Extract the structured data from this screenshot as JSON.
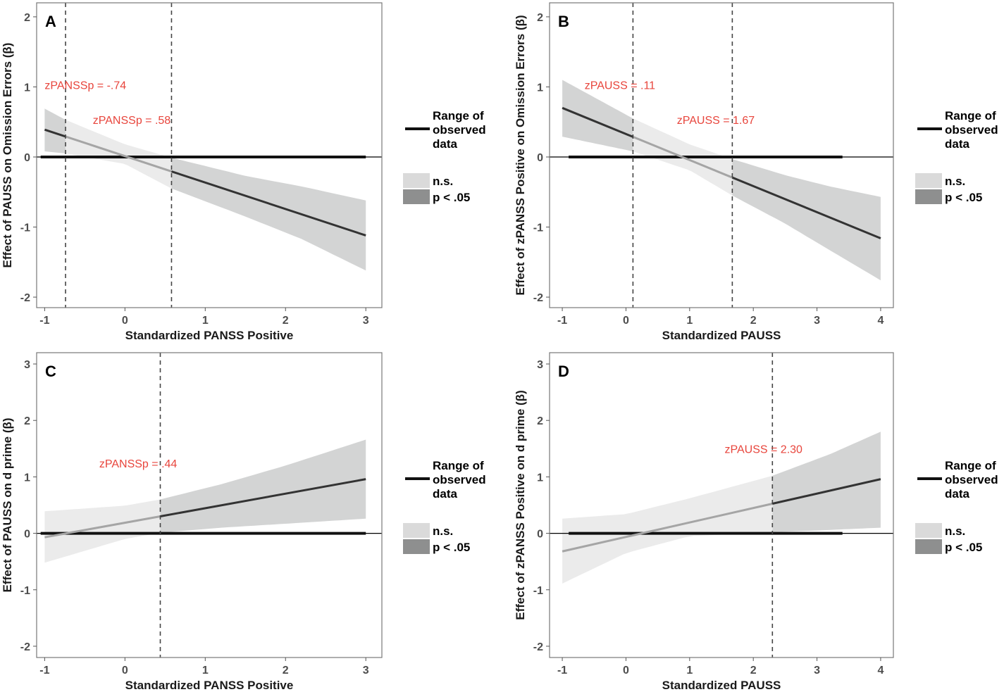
{
  "figure": {
    "colors": {
      "band_ns": "#ebebeb",
      "band_sig": "#d3d4d4",
      "line_ns": "#a5a5a5",
      "line_sig": "#333333",
      "range": "#111111",
      "annotation": "#e8453c",
      "vline": "#444444",
      "legend_ns": "#dadada",
      "legend_sig": "#8e8f8f"
    }
  },
  "legend": {
    "range_label": [
      "Range of",
      "observed",
      "data"
    ],
    "ns_label": "n.s.",
    "sig_label": "p < .05"
  },
  "chart_data": [
    {
      "panel": "A",
      "type": "line",
      "xlabel": "Standardized PANSS Positive",
      "ylabel": "Effect of PAUSS on Omission Errors (β)",
      "xlim": [
        -1.1,
        3.2
      ],
      "ylim": [
        -2.15,
        2.2
      ],
      "xticks": [
        -1,
        0,
        1,
        2,
        3
      ],
      "yticks": [
        -2,
        -1,
        0,
        1,
        2
      ],
      "x_range": [
        -1,
        3
      ],
      "line": [
        0.39,
        -1.12
      ],
      "band_lower": [
        [
          -1,
          0.08
        ],
        [
          -0.74,
          0.05
        ],
        [
          0,
          -0.1
        ],
        [
          0.58,
          -0.45
        ],
        [
          1.5,
          -0.85
        ],
        [
          2.2,
          -1.17
        ],
        [
          3,
          -1.62
        ]
      ],
      "band_upper": [
        [
          -1,
          0.69
        ],
        [
          -0.74,
          0.53
        ],
        [
          0,
          0.18
        ],
        [
          0.58,
          -0.01
        ],
        [
          1.5,
          -0.27
        ],
        [
          2.2,
          -0.42
        ],
        [
          3,
          -0.62
        ]
      ],
      "significance": [
        {
          "from": -1,
          "to": -0.74,
          "sig": true
        },
        {
          "from": -0.74,
          "to": 0.58,
          "sig": false
        },
        {
          "from": 0.58,
          "to": 3,
          "sig": true
        }
      ],
      "vlines": [
        -0.74,
        0.58
      ],
      "annotations": [
        {
          "text": "zPANSSp = -.74",
          "x": -1.0,
          "y": 0.97
        },
        {
          "text": "zPANSSp = .58",
          "x": -0.4,
          "y": 0.47
        }
      ],
      "observed_range": [
        -1.05,
        3.0
      ]
    },
    {
      "panel": "B",
      "type": "line",
      "xlabel": "Standardized PAUSS",
      "ylabel": "Effect of zPANSS Positive on Omission Errors (β)",
      "xlim": [
        -1.2,
        4.2
      ],
      "ylim": [
        -2.15,
        2.2
      ],
      "xticks": [
        -1,
        0,
        1,
        2,
        3,
        4
      ],
      "yticks": [
        -2,
        -1,
        0,
        1,
        2
      ],
      "x_range": [
        -1,
        4
      ],
      "line": [
        0.7,
        -1.16
      ],
      "band_lower": [
        [
          -1,
          0.29
        ],
        [
          0.11,
          0.08
        ],
        [
          1,
          -0.19
        ],
        [
          1.67,
          -0.55
        ],
        [
          2.5,
          -0.95
        ],
        [
          3.2,
          -1.33
        ],
        [
          4,
          -1.76
        ]
      ],
      "band_upper": [
        [
          -1,
          1.1
        ],
        [
          0.11,
          0.55
        ],
        [
          1,
          0.18
        ],
        [
          1.67,
          -0.03
        ],
        [
          2.5,
          -0.26
        ],
        [
          3.2,
          -0.42
        ],
        [
          4,
          -0.57
        ]
      ],
      "significance": [
        {
          "from": -1,
          "to": 0.11,
          "sig": true
        },
        {
          "from": 0.11,
          "to": 1.67,
          "sig": false
        },
        {
          "from": 1.67,
          "to": 4,
          "sig": true
        }
      ],
      "vlines": [
        0.11,
        1.67
      ],
      "annotations": [
        {
          "text": "zPAUSS = .11",
          "x": -0.65,
          "y": 0.97
        },
        {
          "text": "zPAUSS = 1.67",
          "x": 0.8,
          "y": 0.47
        }
      ],
      "observed_range": [
        -0.9,
        3.4
      ]
    },
    {
      "panel": "C",
      "type": "line",
      "xlabel": "Standardized PANSS Positive",
      "ylabel": "Effect of PAUSS on d prime (β)",
      "xlim": [
        -1.1,
        3.2
      ],
      "ylim": [
        -2.2,
        3.2
      ],
      "xticks": [
        -1,
        0,
        1,
        2,
        3
      ],
      "yticks": [
        -2,
        -1,
        0,
        1,
        2,
        3
      ],
      "x_range": [
        -1,
        3
      ],
      "line": [
        -0.07,
        0.96
      ],
      "band_lower": [
        [
          -1,
          -0.52
        ],
        [
          0,
          -0.1
        ],
        [
          0.44,
          0.01
        ],
        [
          1.2,
          0.1
        ],
        [
          2,
          0.17
        ],
        [
          3,
          0.26
        ]
      ],
      "band_upper": [
        [
          -1,
          0.39
        ],
        [
          0,
          0.49
        ],
        [
          0.44,
          0.6
        ],
        [
          1.2,
          0.87
        ],
        [
          2,
          1.2
        ],
        [
          3,
          1.66
        ]
      ],
      "significance": [
        {
          "from": -1,
          "to": 0.44,
          "sig": false
        },
        {
          "from": 0.44,
          "to": 3,
          "sig": true
        }
      ],
      "vlines": [
        0.44
      ],
      "annotations": [
        {
          "text": "zPANSSp = .44",
          "x": -0.32,
          "y": 1.17
        }
      ],
      "observed_range": [
        -1.05,
        3.0
      ]
    },
    {
      "panel": "D",
      "type": "line",
      "xlabel": "Standardized PAUSS",
      "ylabel": "Effect of zPANSS Positive on d prime (β)",
      "xlim": [
        -1.2,
        4.2
      ],
      "ylim": [
        -2.2,
        3.2
      ],
      "xticks": [
        -1,
        0,
        1,
        2,
        3,
        4
      ],
      "yticks": [
        -2,
        -1,
        0,
        1,
        2,
        3
      ],
      "x_range": [
        -1,
        4
      ],
      "line": [
        -0.32,
        0.96
      ],
      "band_lower": [
        [
          -1,
          -0.89
        ],
        [
          0,
          -0.35
        ],
        [
          1,
          -0.05
        ],
        [
          2.3,
          0.02
        ],
        [
          3.2,
          0.06
        ],
        [
          4,
          0.1
        ]
      ],
      "band_upper": [
        [
          -1,
          0.26
        ],
        [
          0,
          0.34
        ],
        [
          1,
          0.62
        ],
        [
          2.3,
          1.02
        ],
        [
          3.2,
          1.4
        ],
        [
          4,
          1.8
        ]
      ],
      "significance": [
        {
          "from": -1,
          "to": 2.3,
          "sig": false
        },
        {
          "from": 2.3,
          "to": 4,
          "sig": true
        }
      ],
      "vlines": [
        2.3
      ],
      "annotations": [
        {
          "text": "zPAUSS = 2.30",
          "x": 1.55,
          "y": 1.42
        }
      ],
      "observed_range": [
        -0.9,
        3.4
      ]
    }
  ]
}
